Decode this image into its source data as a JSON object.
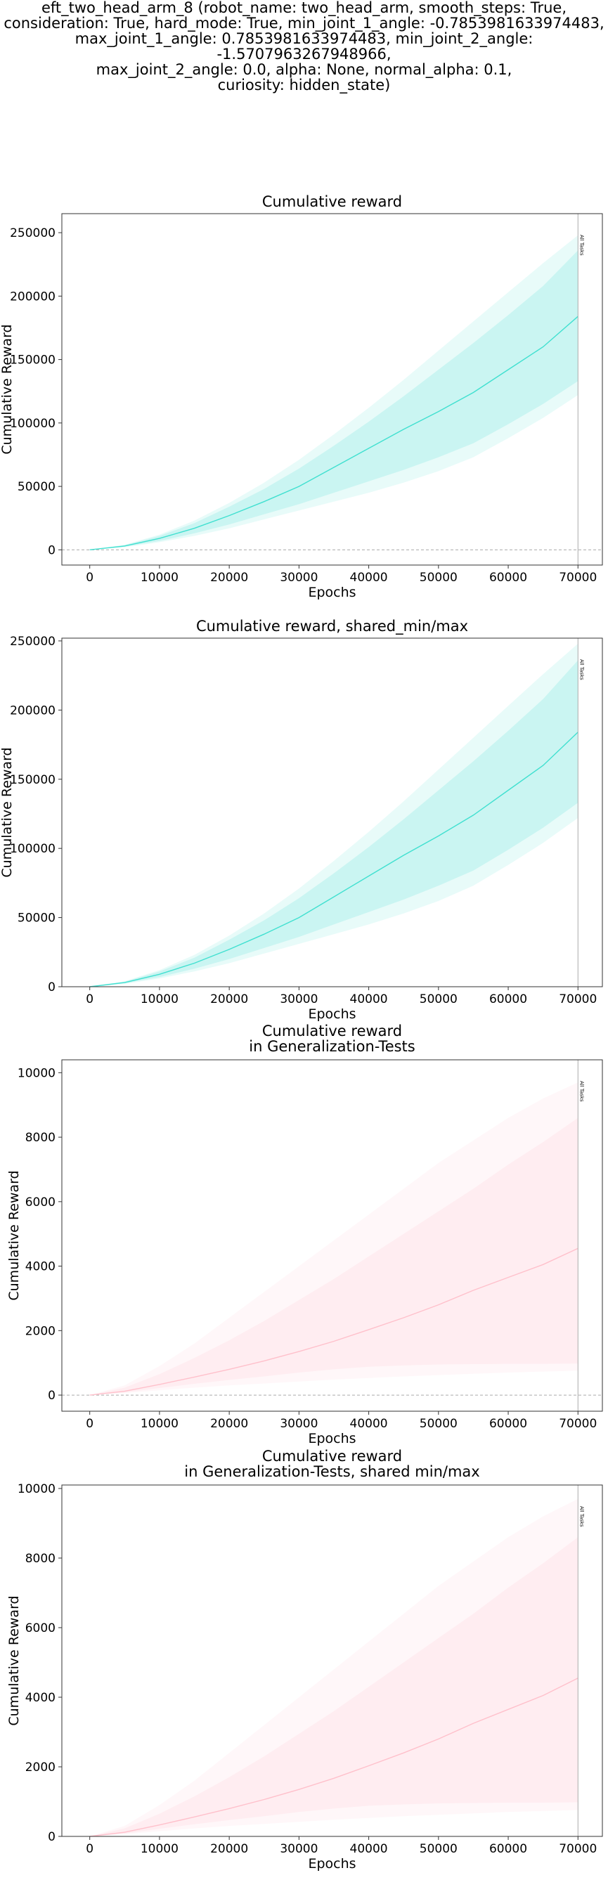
{
  "figure": {
    "suptitle": "eft_two_head_arm_8 (robot_name: two_head_arm, smooth_steps: True,\nconsideration: True, hard_mode: True, min_joint_1_angle: -0.7853981633974483,\nmax_joint_1_angle: 0.7853981633974483, min_joint_2_angle: -1.5707963267948966,\nmax_joint_2_angle: 0.0, alpha: None, normal_alpha: 0.1,\ncuriosity: hidden_state)"
  },
  "chart_data": [
    {
      "type": "area",
      "title": "Cumulative reward",
      "xlabel": "Epochs",
      "ylabel": "Cumulative Reward",
      "xlim": [
        -4000,
        73500
      ],
      "ylim": [
        -12000,
        265000
      ],
      "xticks": [
        0,
        10000,
        20000,
        30000,
        40000,
        50000,
        60000,
        70000
      ],
      "yticks": [
        0,
        50000,
        100000,
        150000,
        200000,
        250000
      ],
      "hline_zero": true,
      "vline": {
        "x": 70000,
        "label": "All Tasks"
      },
      "grid": false,
      "color": "#40e0d0",
      "series": [
        {
          "x": [
            0,
            5000,
            10000,
            15000,
            20000,
            25000,
            30000,
            35000,
            40000,
            45000,
            50000,
            55000,
            60000,
            65000,
            70000
          ],
          "mean": [
            0,
            3000,
            9000,
            17000,
            27000,
            38000,
            50000,
            65000,
            80000,
            95000,
            109000,
            124000,
            142000,
            160000,
            184000
          ],
          "band_outer": {
            "lower": [
              0,
              2000,
              6000,
              11000,
              17000,
              24000,
              31000,
              38000,
              45000,
              53000,
              62000,
              73000,
              88000,
              104000,
              122000
            ],
            "upper": [
              0,
              4000,
              12000,
              23000,
              37000,
              53000,
              71000,
              91000,
              112000,
              134000,
              157000,
              180000,
              203000,
              226000,
              248000
            ]
          },
          "band_inner": {
            "lower": [
              0,
              2500,
              7000,
              13000,
              20000,
              28000,
              36000,
              45000,
              54000,
              63000,
              73000,
              84000,
              99000,
              115000,
              133000
            ],
            "upper": [
              0,
              3600,
              11000,
              21000,
              34000,
              48000,
              64000,
              82000,
              101000,
              121000,
              142000,
              163000,
              185000,
              208000,
              236000
            ]
          }
        }
      ]
    },
    {
      "type": "area",
      "title": "Cumulative reward, shared_min/max",
      "xlabel": "Epochs",
      "ylabel": "Cumulative Reward",
      "xlim": [
        -4000,
        73500
      ],
      "ylim": [
        0,
        252000
      ],
      "xticks": [
        0,
        10000,
        20000,
        30000,
        40000,
        50000,
        60000,
        70000
      ],
      "yticks": [
        0,
        50000,
        100000,
        150000,
        200000,
        250000
      ],
      "hline_zero": false,
      "vline": {
        "x": 70000,
        "label": "All Tasks"
      },
      "grid": false,
      "color": "#40e0d0",
      "series": [
        {
          "x": [
            0,
            5000,
            10000,
            15000,
            20000,
            25000,
            30000,
            35000,
            40000,
            45000,
            50000,
            55000,
            60000,
            65000,
            70000
          ],
          "mean": [
            0,
            3000,
            9000,
            17000,
            27000,
            38000,
            50000,
            65000,
            80000,
            95000,
            109000,
            124000,
            142000,
            160000,
            184000
          ],
          "band_outer": {
            "lower": [
              0,
              2000,
              6000,
              11000,
              17000,
              24000,
              31000,
              38000,
              45000,
              53000,
              62000,
              73000,
              88000,
              104000,
              122000
            ],
            "upper": [
              0,
              4000,
              12000,
              23000,
              37000,
              53000,
              71000,
              91000,
              112000,
              134000,
              157000,
              180000,
              203000,
              226000,
              248000
            ]
          },
          "band_inner": {
            "lower": [
              0,
              2500,
              7000,
              13000,
              20000,
              28000,
              36000,
              45000,
              54000,
              63000,
              73000,
              84000,
              99000,
              115000,
              133000
            ],
            "upper": [
              0,
              3600,
              11000,
              21000,
              34000,
              48000,
              64000,
              82000,
              101000,
              121000,
              142000,
              163000,
              185000,
              208000,
              236000
            ]
          }
        }
      ]
    },
    {
      "type": "area",
      "title": "Cumulative reward\nin Generalization-Tests",
      "xlabel": "Epochs",
      "ylabel": "Cumulative Reward",
      "xlim": [
        -4000,
        73500
      ],
      "ylim": [
        -500,
        10400
      ],
      "xticks": [
        0,
        10000,
        20000,
        30000,
        40000,
        50000,
        60000,
        70000
      ],
      "yticks": [
        0,
        2000,
        4000,
        6000,
        8000,
        10000
      ],
      "hline_zero": true,
      "vline": {
        "x": 70000,
        "label": "All Tasks"
      },
      "grid": false,
      "color": "#ffc0cb",
      "series": [
        {
          "x": [
            0,
            5000,
            10000,
            15000,
            20000,
            25000,
            30000,
            35000,
            40000,
            45000,
            50000,
            55000,
            60000,
            65000,
            70000
          ],
          "mean": [
            0,
            120,
            330,
            560,
            800,
            1060,
            1350,
            1670,
            2030,
            2400,
            2800,
            3250,
            3650,
            4050,
            4550
          ],
          "band_outer": {
            "lower": [
              0,
              60,
              150,
              230,
              300,
              360,
              420,
              480,
              530,
              580,
              620,
              660,
              700,
              730,
              760
            ],
            "upper": [
              0,
              300,
              900,
              1600,
              2400,
              3200,
              4000,
              4800,
              5600,
              6400,
              7200,
              7900,
              8600,
              9200,
              9700
            ]
          },
          "band_inner": {
            "lower": [
              0,
              80,
              220,
              350,
              470,
              580,
              700,
              800,
              880,
              920,
              950,
              960,
              970,
              970,
              980
            ],
            "upper": [
              0,
              230,
              650,
              1150,
              1700,
              2300,
              2950,
              3600,
              4300,
              5000,
              5700,
              6400,
              7150,
              7850,
              8600
            ]
          }
        }
      ]
    },
    {
      "type": "area",
      "title": "Cumulative reward\nin Generalization-Tests, shared min/max",
      "xlabel": "Epochs",
      "ylabel": "Cumulative Reward",
      "xlim": [
        -4000,
        73500
      ],
      "ylim": [
        0,
        10100
      ],
      "xticks": [
        0,
        10000,
        20000,
        30000,
        40000,
        50000,
        60000,
        70000
      ],
      "yticks": [
        0,
        2000,
        4000,
        6000,
        8000,
        10000
      ],
      "hline_zero": false,
      "vline": {
        "x": 70000,
        "label": "All Tasks"
      },
      "grid": false,
      "color": "#ffc0cb",
      "series": [
        {
          "x": [
            0,
            5000,
            10000,
            15000,
            20000,
            25000,
            30000,
            35000,
            40000,
            45000,
            50000,
            55000,
            60000,
            65000,
            70000
          ],
          "mean": [
            0,
            120,
            330,
            560,
            800,
            1060,
            1350,
            1670,
            2030,
            2400,
            2800,
            3250,
            3650,
            4050,
            4550
          ],
          "band_outer": {
            "lower": [
              0,
              60,
              150,
              230,
              300,
              360,
              420,
              480,
              530,
              580,
              620,
              660,
              700,
              730,
              760
            ],
            "upper": [
              0,
              300,
              900,
              1600,
              2400,
              3200,
              4000,
              4800,
              5600,
              6400,
              7200,
              7900,
              8600,
              9200,
              9700
            ]
          },
          "band_inner": {
            "lower": [
              0,
              80,
              220,
              350,
              470,
              580,
              700,
              800,
              880,
              920,
              950,
              960,
              970,
              970,
              980
            ],
            "upper": [
              0,
              230,
              650,
              1150,
              1700,
              2300,
              2950,
              3600,
              4300,
              5000,
              5700,
              6400,
              7150,
              7850,
              8600
            ]
          }
        }
      ]
    }
  ]
}
